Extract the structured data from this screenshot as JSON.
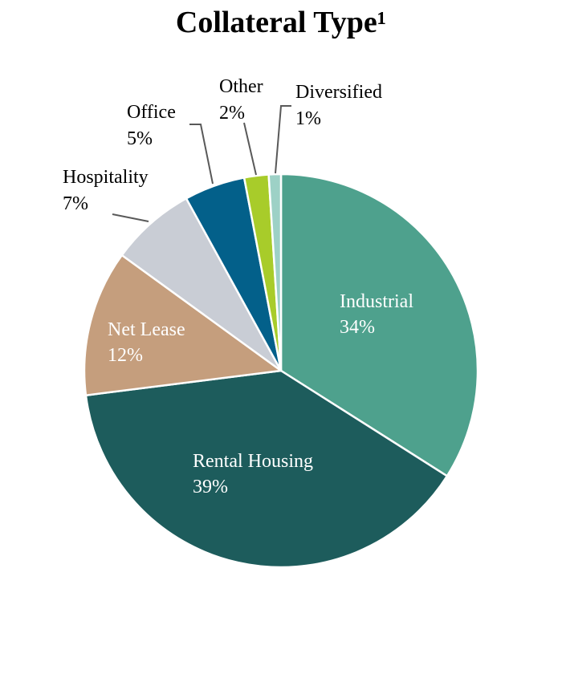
{
  "chart_data": {
    "type": "pie",
    "title": "Collateral Type¹",
    "slices": [
      {
        "name": "Industrial",
        "value": 34,
        "label": "34%",
        "color": "#4ea18d",
        "label_color": "#ffffff",
        "label_style": "inside"
      },
      {
        "name": "Rental Housing",
        "value": 39,
        "label": "39%",
        "color": "#1d5c5c",
        "label_color": "#ffffff",
        "label_style": "inside"
      },
      {
        "name": "Net Lease",
        "value": 12,
        "label": "12%",
        "color": "#c59e7d",
        "label_color": "#ffffff",
        "label_style": "inside"
      },
      {
        "name": "Hospitality",
        "value": 7,
        "label": "7%",
        "color": "#c9cdd5",
        "label_color": "#000000",
        "label_style": "outside"
      },
      {
        "name": "Office",
        "value": 5,
        "label": "5%",
        "color": "#03608a",
        "label_color": "#000000",
        "label_style": "outside"
      },
      {
        "name": "Other",
        "value": 2,
        "label": "2%",
        "color": "#a8cc2a",
        "label_color": "#000000",
        "label_style": "outside"
      },
      {
        "name": "Diversified",
        "value": 1,
        "label": "1%",
        "color": "#9dd1c6",
        "label_color": "#000000",
        "label_style": "outside"
      }
    ],
    "start": "12 o'clock",
    "direction": "clockwise",
    "legend": "none",
    "leader_line_color": "#595959",
    "slice_border_color": "#ffffff"
  }
}
